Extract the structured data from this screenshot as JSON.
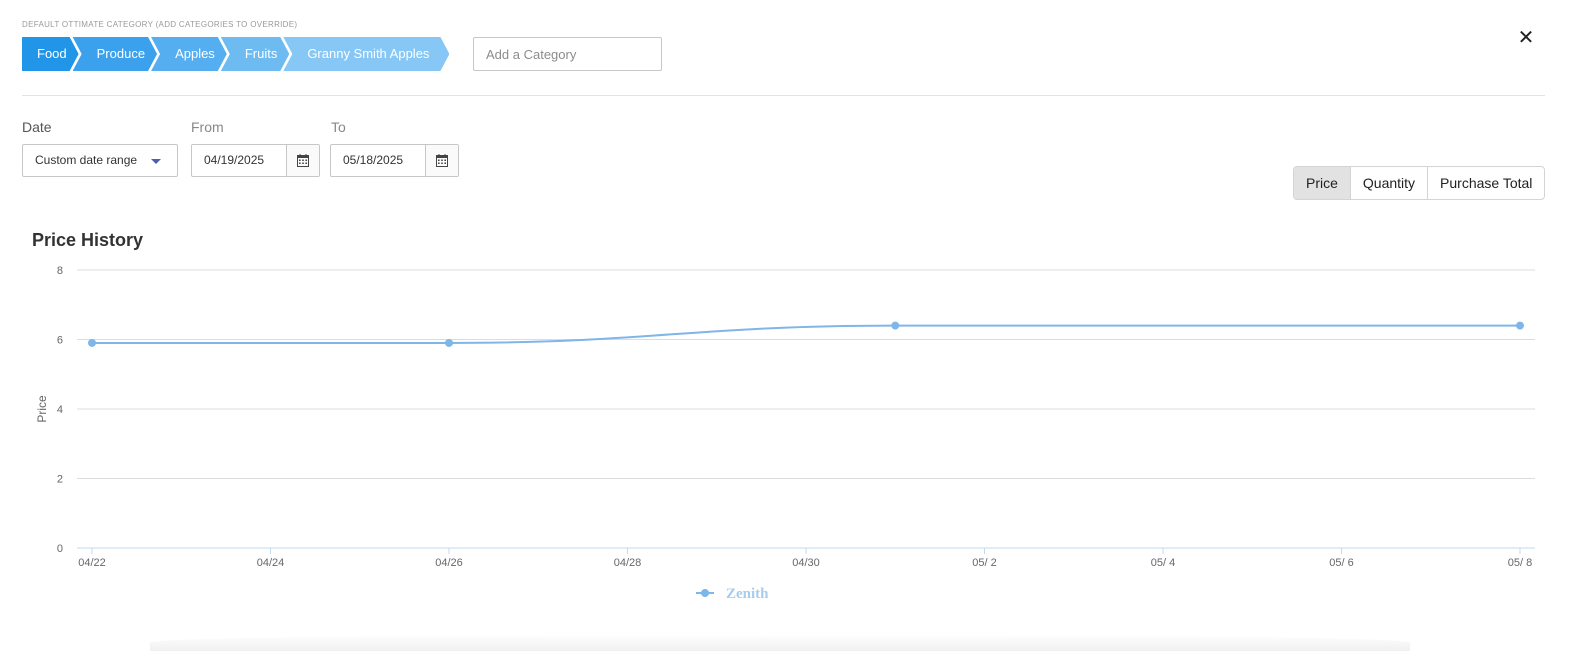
{
  "category": {
    "label": "DEFAULT OTTIMATE CATEGORY (ADD CATEGORIES TO OVERRIDE)",
    "crumbs": [
      {
        "label": "Food",
        "color": "#2196e8"
      },
      {
        "label": "Produce",
        "color": "#3ba1ec"
      },
      {
        "label": "Apples",
        "color": "#55aef0"
      },
      {
        "label": "Fruits",
        "color": "#6ebbf2"
      },
      {
        "label": "Granny Smith Apples",
        "color": "#86c7f5"
      }
    ],
    "add_placeholder": "Add a Category"
  },
  "close_icon": "close-icon",
  "filters": {
    "date_label": "Date",
    "date_range": "Custom date range",
    "from_label": "From",
    "from_value": "04/19/2025",
    "to_label": "To",
    "to_value": "05/18/2025",
    "calendar_icon": "calendar-icon"
  },
  "metric_toggle": {
    "options": [
      "Price",
      "Quantity",
      "Purchase Total"
    ],
    "selected": "Price"
  },
  "chart_data": {
    "type": "line",
    "title": "Price History",
    "ylabel": "Price",
    "xlabel": "",
    "ylim": [
      0,
      8
    ],
    "yticks": [
      "0",
      "2",
      "4",
      "6",
      "8"
    ],
    "x_ticks": [
      "04/22",
      "04/24",
      "04/26",
      "04/28",
      "04/30",
      "05/ 2",
      "05/ 4",
      "05/ 6",
      "05/ 8"
    ],
    "grid": true,
    "legend_position": "bottom-center",
    "line_color": "#7fb6e8",
    "series": [
      {
        "name": "Zenith",
        "points": [
          {
            "x": "04/22",
            "y": 5.9
          },
          {
            "x": "04/26",
            "y": 5.9
          },
          {
            "x": "05/01",
            "y": 6.4
          },
          {
            "x": "05/08",
            "y": 6.4
          }
        ]
      }
    ]
  }
}
